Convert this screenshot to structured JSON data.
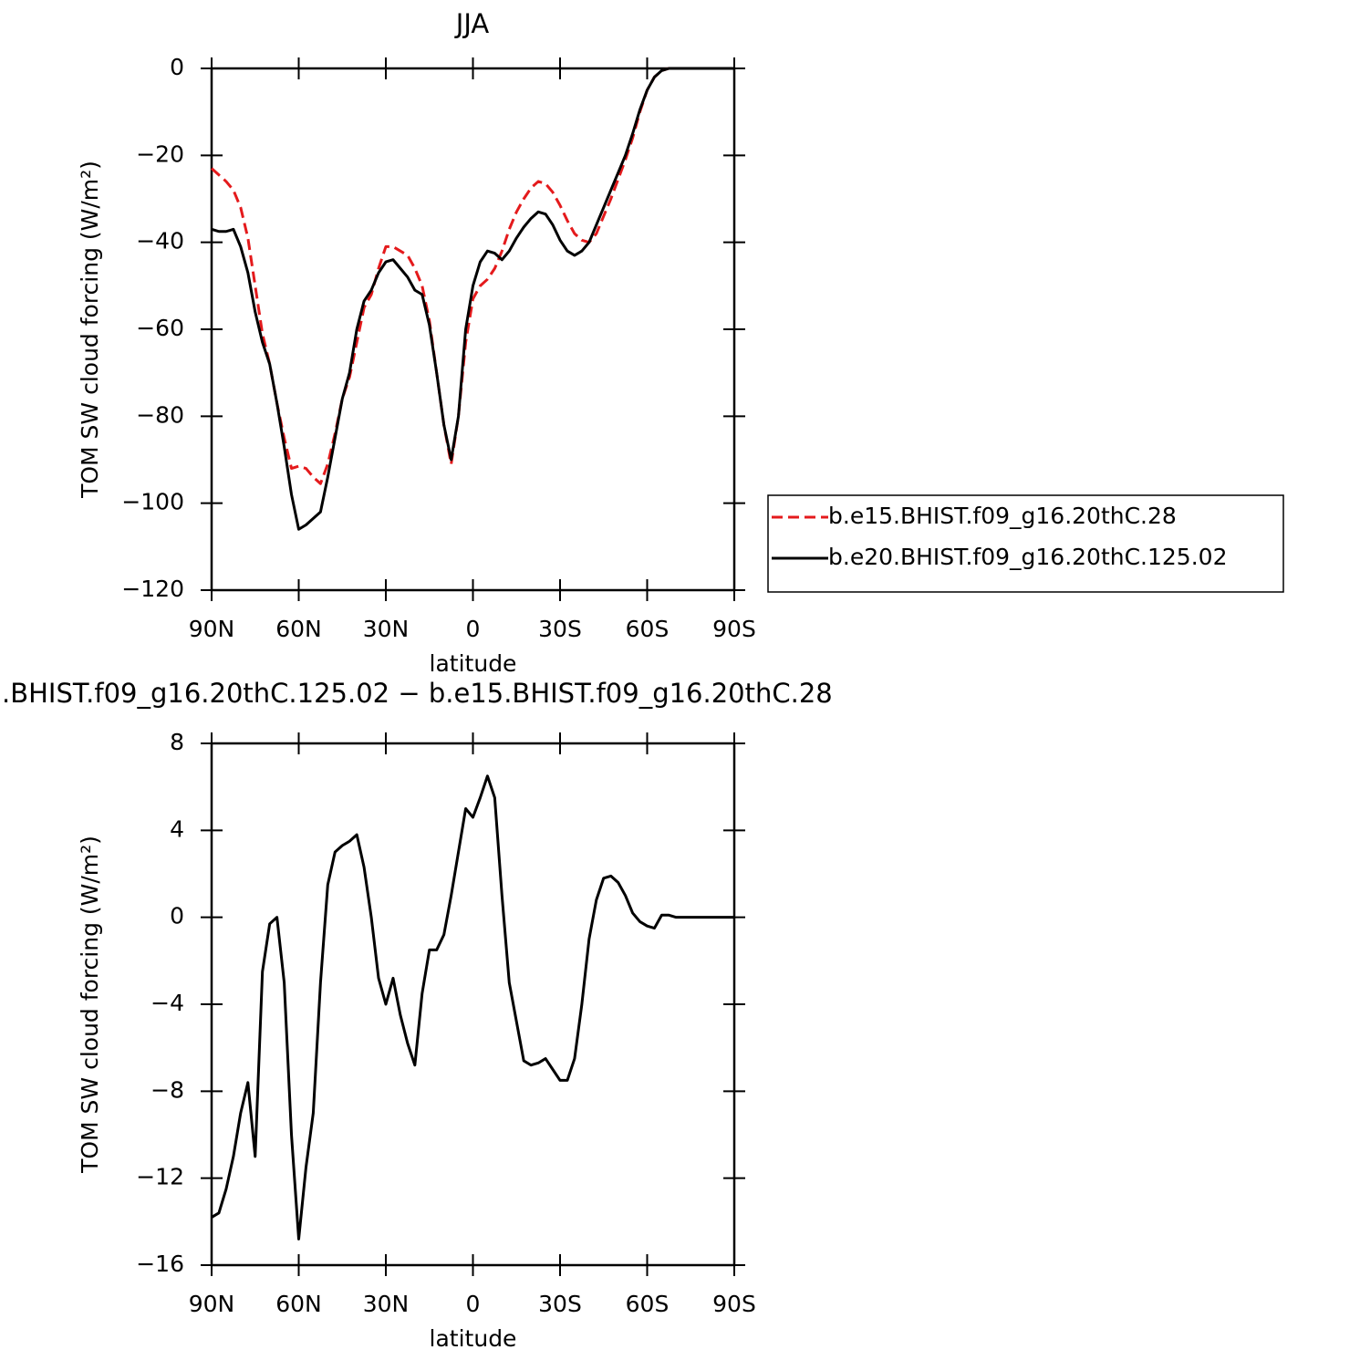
{
  "chart_data": [
    {
      "type": "line",
      "title": "JJA",
      "x_label": "latitude",
      "y_label": "TOM SW cloud forcing (W/m²)",
      "xlim": [
        90,
        -90
      ],
      "xticks": [
        {
          "value": 90,
          "label": "90N"
        },
        {
          "value": 60,
          "label": "60N"
        },
        {
          "value": 30,
          "label": "30N"
        },
        0,
        {
          "value": -30,
          "label": "30S"
        },
        {
          "value": -60,
          "label": "60S"
        },
        {
          "value": -90,
          "label": "90S"
        }
      ],
      "ylim": [
        -120,
        0
      ],
      "yticks": [
        -120,
        -100,
        -80,
        -60,
        -40,
        -20,
        0
      ],
      "legend": "right",
      "x": [
        90,
        87.5,
        85,
        82.5,
        80,
        77.5,
        75,
        72.5,
        70,
        67.5,
        65,
        62.5,
        60,
        57.5,
        55,
        52.5,
        50,
        47.5,
        45,
        42.5,
        40,
        37.5,
        35,
        32.5,
        30,
        27.5,
        25,
        22.5,
        20,
        17.5,
        15,
        12.5,
        10,
        7.5,
        5,
        2.5,
        0,
        -2.5,
        -5,
        -7.5,
        -10,
        -12.5,
        -15,
        -17.5,
        -20,
        -22.5,
        -25,
        -27.5,
        -30,
        -32.5,
        -35,
        -37.5,
        -40,
        -42.5,
        -45,
        -47.5,
        -50,
        -52.5,
        -55,
        -57.5,
        -60,
        -62.5,
        -65,
        -67.5,
        -70,
        -72.5,
        -75,
        -77.5,
        -80,
        -82.5,
        -85,
        -87.5,
        -90
      ],
      "series": [
        {
          "name": "b.e15.BHIST.f09_g16.20thC.28",
          "color": "#e41a1c",
          "linestyle": "dashed",
          "values": [
            -23,
            -24.5,
            -26,
            -28,
            -32,
            -39,
            -50,
            -61,
            -68,
            -77,
            -85,
            -92,
            -91.5,
            -92,
            -94,
            -95.5,
            -91,
            -84,
            -76,
            -71,
            -63,
            -55,
            -52,
            -46,
            -41,
            -41,
            -42,
            -43,
            -46,
            -50,
            -58,
            -70,
            -82,
            -91,
            -80,
            -63,
            -53,
            -50,
            -48.5,
            -46,
            -42,
            -37,
            -33,
            -30,
            -27.5,
            -26,
            -26.5,
            -28.5,
            -31.5,
            -35,
            -38,
            -39.5,
            -40,
            -38,
            -34,
            -30,
            -25.5,
            -21,
            -16,
            -10,
            -5,
            -2,
            -0.5,
            0,
            0,
            0,
            0,
            0,
            0,
            0,
            0,
            0,
            0
          ]
        },
        {
          "name": "b.e20.BHIST.f09_g16.20thC.125.02",
          "color": "#000000",
          "linestyle": "solid",
          "values": [
            -37,
            -37.5,
            -37.5,
            -37,
            -41,
            -47,
            -56,
            -63,
            -68,
            -77,
            -87,
            -98,
            -106,
            -105,
            -103.5,
            -102,
            -94,
            -85,
            -76,
            -70,
            -60,
            -53.5,
            -51,
            -47,
            -44.5,
            -44,
            -46,
            -48,
            -51,
            -52,
            -59,
            -70,
            -82,
            -90,
            -80,
            -60,
            -50,
            -44.5,
            -42,
            -42.5,
            -44,
            -42,
            -39,
            -36.5,
            -34.5,
            -33,
            -33.5,
            -36,
            -39.5,
            -42,
            -43,
            -42,
            -40,
            -36,
            -32,
            -28,
            -24,
            -20,
            -15,
            -9.5,
            -5,
            -2,
            -0.5,
            0,
            0,
            0,
            0,
            0,
            0,
            0,
            0,
            0,
            0
          ]
        }
      ]
    },
    {
      "type": "line",
      "title": ".BHIST.f09_g16.20thC.125.02 − b.e15.BHIST.f09_g16.20thC.28",
      "x_label": "latitude",
      "y_label": "TOM SW cloud forcing (W/m²)",
      "xlim": [
        90,
        -90
      ],
      "xticks": [
        {
          "value": 90,
          "label": "90N"
        },
        {
          "value": 60,
          "label": "60N"
        },
        {
          "value": 30,
          "label": "30N"
        },
        0,
        {
          "value": -30,
          "label": "30S"
        },
        {
          "value": -60,
          "label": "60S"
        },
        {
          "value": -90,
          "label": "90S"
        }
      ],
      "ylim": [
        -16,
        8
      ],
      "yticks": [
        -16,
        -12,
        -8,
        -4,
        0,
        4,
        8
      ],
      "x": [
        90,
        87.5,
        85,
        82.5,
        80,
        77.5,
        75,
        72.5,
        70,
        67.5,
        65,
        62.5,
        60,
        57.5,
        55,
        52.5,
        50,
        47.5,
        45,
        42.5,
        40,
        37.5,
        35,
        32.5,
        30,
        27.5,
        25,
        22.5,
        20,
        17.5,
        15,
        12.5,
        10,
        7.5,
        5,
        2.5,
        0,
        -2.5,
        -5,
        -7.5,
        -10,
        -12.5,
        -15,
        -17.5,
        -20,
        -22.5,
        -25,
        -27.5,
        -30,
        -32.5,
        -35,
        -37.5,
        -40,
        -42.5,
        -45,
        -47.5,
        -50,
        -52.5,
        -55,
        -57.5,
        -60,
        -62.5,
        -65,
        -67.5,
        -70,
        -72.5,
        -75,
        -77.5,
        -80,
        -82.5,
        -85,
        -87.5,
        -90
      ],
      "series": [
        {
          "color": "#000000",
          "linestyle": "solid",
          "values": [
            -13.8,
            -13.6,
            -12.5,
            -11,
            -9,
            -7.6,
            -11,
            -2.5,
            -0.3,
            0,
            -3,
            -10,
            -14.8,
            -11.5,
            -9,
            -3,
            1.5,
            3,
            3.3,
            3.5,
            3.8,
            2.3,
            0,
            -2.8,
            -4,
            -2.8,
            -4.5,
            -5.8,
            -6.8,
            -3.5,
            -1.5,
            -1.5,
            -0.8,
            1,
            3,
            5,
            4.6,
            5.5,
            6.5,
            5.5,
            1,
            -3,
            -4.8,
            -6.6,
            -6.8,
            -6.7,
            -6.5,
            -7,
            -7.5,
            -7.5,
            -6.5,
            -4,
            -1,
            0.8,
            1.8,
            1.9,
            1.6,
            1,
            0.2,
            -0.2,
            -0.4,
            -0.5,
            0.1,
            0.1,
            0,
            0,
            0,
            0,
            0,
            0,
            0,
            0,
            0
          ]
        }
      ]
    }
  ]
}
